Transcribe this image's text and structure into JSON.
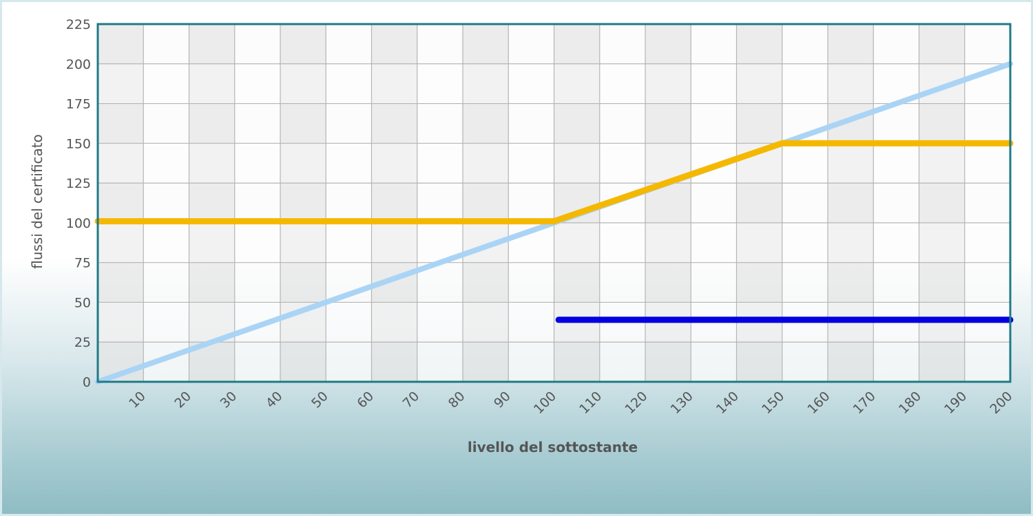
{
  "chart_data": {
    "type": "line",
    "xlabel": "livello del sottostante",
    "ylabel": "flussi del certificato",
    "xlim": [
      0,
      200
    ],
    "ylim": [
      0,
      225
    ],
    "x_ticks": [
      10,
      20,
      30,
      40,
      50,
      60,
      70,
      80,
      90,
      100,
      110,
      120,
      130,
      140,
      150,
      160,
      170,
      180,
      190,
      200
    ],
    "y_ticks": [
      0,
      25,
      50,
      75,
      100,
      125,
      150,
      175,
      200,
      225
    ],
    "grid": true,
    "series": [
      {
        "color": "#aad4f5",
        "points": [
          [
            0,
            0
          ],
          [
            200,
            200
          ]
        ]
      },
      {
        "color": "#f5b800",
        "points": [
          [
            0,
            101
          ],
          [
            100,
            101
          ],
          [
            150,
            150
          ],
          [
            200,
            150
          ]
        ]
      },
      {
        "color": "#0000e0",
        "points": [
          [
            101,
            39
          ],
          [
            200,
            39
          ]
        ]
      }
    ]
  }
}
